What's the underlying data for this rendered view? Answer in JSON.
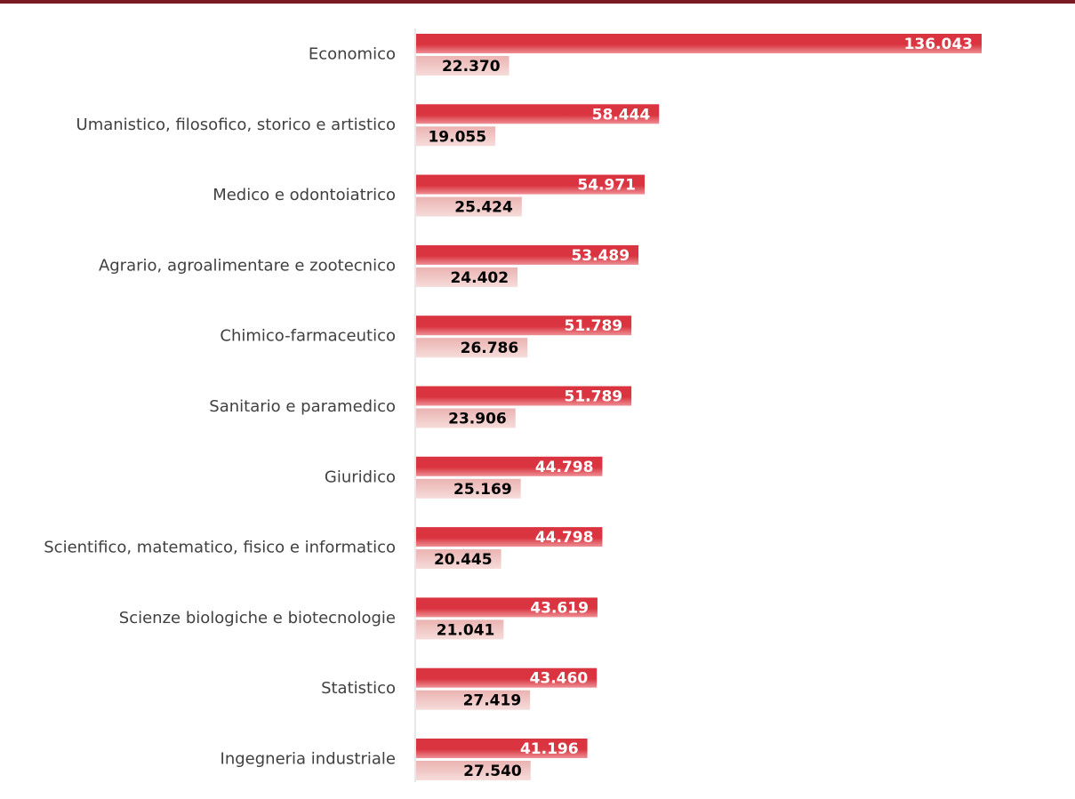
{
  "colors": {
    "top_rule": "#7b1a22",
    "primary_series": "#d9343f",
    "primary_series_light": "#ee8f95",
    "secondary_series": "#eab3b1",
    "secondary_series_light": "#f6dcda",
    "axis": "#d0d0d0",
    "primary_label": "#ffffff",
    "secondary_label": "#000000"
  },
  "chart_data": {
    "type": "bar",
    "orientation": "horizontal",
    "title": "",
    "xlabel": "",
    "ylabel": "",
    "grid": false,
    "legend": "none",
    "xlim": [
      0,
      140000
    ],
    "categories": [
      "Economico",
      "Umanistico, filosofico, storico e artistico",
      "Medico e odontoiatrico",
      "Agrario, agroalimentare e zootecnico",
      "Chimico-farmaceutico",
      "Sanitario e paramedico",
      "Giuridico",
      "Scientifico, matematico, fisico e informatico",
      "Scienze biologiche e biotecnologie",
      "Statistico",
      "Ingegneria industriale"
    ],
    "series": [
      {
        "values": [
          136043,
          58444,
          54971,
          53489,
          51789,
          51789,
          44798,
          44798,
          43619,
          43460,
          41196
        ],
        "labels": [
          "136.043",
          "58.444",
          "54.971",
          "53.489",
          "51.789",
          "51.789",
          "44.798",
          "44.798",
          "43.619",
          "43.460",
          "41.196"
        ]
      },
      {
        "values": [
          22370,
          19055,
          25424,
          24402,
          26786,
          23906,
          25169,
          20445,
          21041,
          27419,
          27540
        ],
        "labels": [
          "22.370",
          "19.055",
          "25.424",
          "24.402",
          "26.786",
          "23.906",
          "25.169",
          "20.445",
          "21.041",
          "27.419",
          "27.540"
        ]
      }
    ]
  }
}
